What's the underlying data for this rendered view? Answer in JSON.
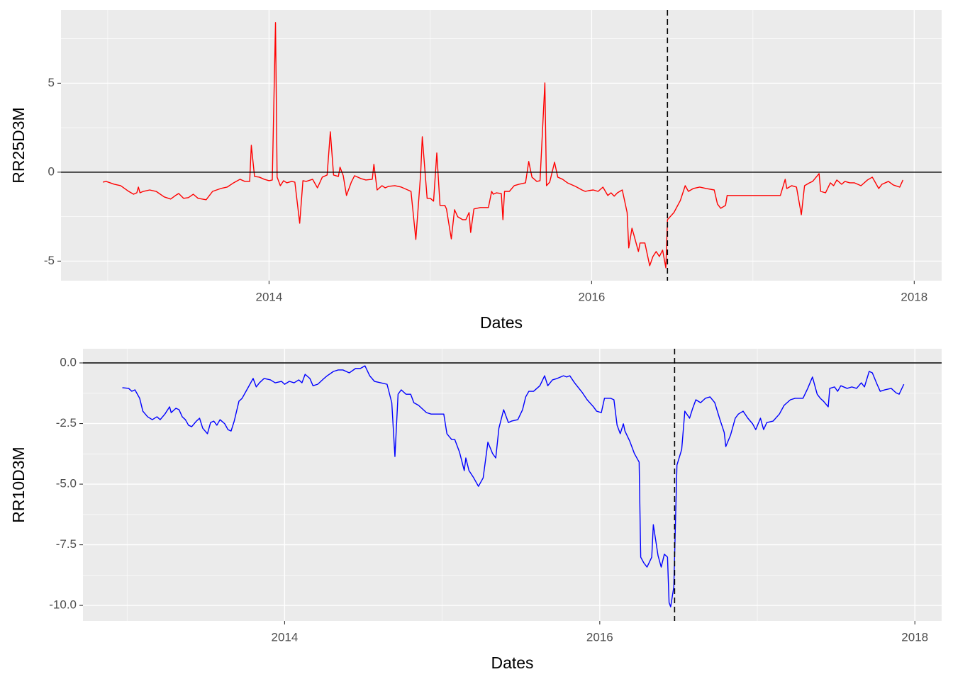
{
  "chart_data": [
    {
      "type": "line",
      "xlabel": "Dates",
      "ylabel": "RR25D3M",
      "xlim": [
        2012.71,
        2018.17
      ],
      "ylim": [
        -6.1,
        9.12
      ],
      "xticks": [
        2014,
        2016,
        2018
      ],
      "yticks": [
        -5,
        0,
        5
      ],
      "xminor": [
        2013,
        2015,
        2017
      ],
      "yminor": [
        -2.5,
        2.5,
        7.5
      ],
      "grid": true,
      "hline": 0,
      "vline": 2016.47,
      "x": [
        2012.97,
        2012.99,
        2013.04,
        2013.08,
        2013.13,
        2013.16,
        2013.18,
        2013.19,
        2013.2,
        2013.22,
        2013.26,
        2013.3,
        2013.35,
        2013.39,
        2013.42,
        2013.44,
        2013.47,
        2013.5,
        2013.53,
        2013.56,
        2013.61,
        2013.65,
        2013.7,
        2013.74,
        2013.78,
        2013.82,
        2013.85,
        2013.88,
        2013.89,
        2013.91,
        2013.94,
        2013.97,
        2014.0,
        2014.02,
        2014.04,
        2014.05,
        2014.07,
        2014.09,
        2014.11,
        2014.14,
        2014.16,
        2014.19,
        2014.21,
        2014.23,
        2014.27,
        2014.3,
        2014.33,
        2014.36,
        2014.38,
        2014.4,
        2014.43,
        2014.44,
        2014.46,
        2014.48,
        2014.51,
        2014.53,
        2014.57,
        2014.6,
        2014.64,
        2014.65,
        2014.67,
        2014.7,
        2014.72,
        2014.74,
        2014.78,
        2014.82,
        2014.86,
        2014.88,
        2014.91,
        2014.94,
        2014.95,
        2014.98,
        2015.0,
        2015.02,
        2015.04,
        2015.06,
        2015.09,
        2015.1,
        2015.13,
        2015.15,
        2015.17,
        2015.2,
        2015.22,
        2015.24,
        2015.25,
        2015.27,
        2015.31,
        2015.34,
        2015.36,
        2015.38,
        2015.39,
        2015.41,
        2015.44,
        2015.45,
        2015.46,
        2015.49,
        2015.52,
        2015.55,
        2015.59,
        2015.61,
        2015.63,
        2015.66,
        2015.68,
        2015.71,
        2015.72,
        2015.74,
        2015.77,
        2015.79,
        2015.82,
        2015.85,
        2015.88,
        2015.9,
        2015.94,
        2015.96,
        2015.98,
        2016.01,
        2016.04,
        2016.05,
        2016.07,
        2016.1,
        2016.12,
        2016.14,
        2016.16,
        2016.19,
        2016.22,
        2016.23,
        2016.25,
        2016.26,
        2016.29,
        2016.3,
        2016.33,
        2016.36,
        2016.38,
        2016.4,
        2016.42,
        2016.44,
        2016.46,
        2016.47,
        2016.51,
        2016.55,
        2016.58,
        2016.6,
        2016.63,
        2016.67,
        2016.71,
        2016.76,
        2016.78,
        2016.8,
        2016.83,
        2016.84,
        2017.17,
        2017.2,
        2017.21,
        2017.24,
        2017.27,
        2017.3,
        2017.32,
        2017.35,
        2017.37,
        2017.41,
        2017.42,
        2017.45,
        2017.48,
        2017.5,
        2017.52,
        2017.55,
        2017.57,
        2017.6,
        2017.63,
        2017.67,
        2017.71,
        2017.74,
        2017.78,
        2017.8,
        2017.84,
        2017.87,
        2017.91,
        2017.93
      ],
      "series": [
        {
          "color": "#ff0000",
          "values": [
            -0.56,
            -0.52,
            -0.68,
            -0.76,
            -1.08,
            -1.24,
            -1.16,
            -0.84,
            -1.16,
            -1.08,
            -1.0,
            -1.08,
            -1.39,
            -1.51,
            -1.31,
            -1.2,
            -1.47,
            -1.43,
            -1.24,
            -1.47,
            -1.55,
            -1.08,
            -0.92,
            -0.84,
            -0.6,
            -0.4,
            -0.52,
            -0.52,
            1.51,
            -0.24,
            -0.28,
            -0.4,
            -0.48,
            -0.44,
            8.41,
            -0.28,
            -0.76,
            -0.48,
            -0.6,
            -0.52,
            -0.56,
            -2.87,
            -0.48,
            -0.52,
            -0.4,
            -0.88,
            -0.28,
            -0.16,
            2.27,
            -0.16,
            -0.24,
            0.28,
            -0.2,
            -1.31,
            -0.56,
            -0.2,
            -0.36,
            -0.44,
            -0.4,
            0.44,
            -1.0,
            -0.76,
            -0.88,
            -0.8,
            -0.76,
            -0.84,
            -1.0,
            -1.08,
            -3.78,
            -0.08,
            1.99,
            -1.47,
            -1.47,
            -1.63,
            1.08,
            -1.87,
            -1.87,
            -2.07,
            -3.75,
            -2.11,
            -2.51,
            -2.67,
            -2.67,
            -2.27,
            -3.39,
            -2.07,
            -1.99,
            -1.99,
            -1.99,
            -1.08,
            -1.24,
            -1.16,
            -1.2,
            -2.67,
            -1.08,
            -1.08,
            -0.76,
            -0.68,
            -0.6,
            0.6,
            -0.28,
            -0.52,
            -0.48,
            5.02,
            -0.76,
            -0.56,
            0.56,
            -0.28,
            -0.4,
            -0.6,
            -0.72,
            -0.8,
            -1.0,
            -1.08,
            -1.04,
            -1.0,
            -1.08,
            -1.0,
            -0.84,
            -1.31,
            -1.16,
            -1.35,
            -1.16,
            -1.0,
            -2.27,
            -4.26,
            -3.15,
            -3.47,
            -4.46,
            -3.98,
            -3.98,
            -5.26,
            -4.74,
            -4.46,
            -4.74,
            -4.38,
            -5.38,
            -2.67,
            -2.27,
            -1.59,
            -0.76,
            -1.08,
            -0.92,
            -0.84,
            -0.92,
            -1.0,
            -1.79,
            -2.03,
            -1.87,
            -1.31,
            -1.31,
            -0.4,
            -0.92,
            -0.76,
            -0.84,
            -2.39,
            -0.76,
            -0.6,
            -0.52,
            -0.08,
            -1.08,
            -1.16,
            -0.6,
            -0.76,
            -0.44,
            -0.68,
            -0.52,
            -0.6,
            -0.6,
            -0.76,
            -0.44,
            -0.28,
            -0.92,
            -0.68,
            -0.52,
            -0.72,
            -0.84,
            -0.44
          ]
        }
      ]
    },
    {
      "type": "line",
      "xlabel": "Dates",
      "ylabel": "RR10D3M",
      "xlim": [
        2012.72,
        2018.17
      ],
      "ylim": [
        -10.64,
        0.585
      ],
      "xticks": [
        2014,
        2016,
        2018
      ],
      "yticks": [
        {
          "value": -10,
          "label": "-10.0"
        },
        -7.5,
        {
          "value": -5,
          "label": "-5.0"
        },
        -2.5,
        {
          "value": 0,
          "label": "0.0"
        }
      ],
      "xminor": [
        2013,
        2015,
        2017
      ],
      "yminor": [
        -8.75,
        -6.25,
        -3.75,
        -1.25
      ],
      "grid": true,
      "hline": 0,
      "vline": 2016.475,
      "x": [
        2012.97,
        2013.01,
        2013.03,
        2013.05,
        2013.08,
        2013.1,
        2013.13,
        2013.16,
        2013.19,
        2013.21,
        2013.24,
        2013.27,
        2013.28,
        2013.31,
        2013.33,
        2013.35,
        2013.37,
        2013.39,
        2013.41,
        2013.44,
        2013.46,
        2013.48,
        2013.51,
        2013.53,
        2013.55,
        2013.57,
        2013.59,
        2013.62,
        2013.64,
        2013.66,
        2013.68,
        2013.71,
        2013.73,
        2013.76,
        2013.8,
        2013.82,
        2013.84,
        2013.87,
        2013.91,
        2013.94,
        2013.98,
        2014.0,
        2014.03,
        2014.06,
        2014.09,
        2014.11,
        2014.13,
        2014.16,
        2014.18,
        2014.21,
        2014.25,
        2014.27,
        2014.31,
        2014.34,
        2014.37,
        2014.41,
        2014.45,
        2014.48,
        2014.51,
        2014.54,
        2014.57,
        2014.61,
        2014.65,
        2014.68,
        2014.7,
        2014.72,
        2014.74,
        2014.77,
        2014.8,
        2014.82,
        2014.85,
        2014.88,
        2014.9,
        2014.93,
        2014.97,
        2015.01,
        2015.03,
        2015.06,
        2015.08,
        2015.11,
        2015.14,
        2015.15,
        2015.17,
        2015.2,
        2015.23,
        2015.26,
        2015.29,
        2015.32,
        2015.34,
        2015.36,
        2015.39,
        2015.42,
        2015.44,
        2015.48,
        2015.51,
        2015.53,
        2015.55,
        2015.58,
        2015.62,
        2015.65,
        2015.67,
        2015.7,
        2015.73,
        2015.77,
        2015.79,
        2015.81,
        2015.84,
        2015.89,
        2015.92,
        2015.96,
        2015.98,
        2016.01,
        2016.03,
        2016.07,
        2016.09,
        2016.11,
        2016.13,
        2016.15,
        2016.16,
        2016.19,
        2016.22,
        2016.25,
        2016.26,
        2016.28,
        2016.3,
        2016.33,
        2016.34,
        2016.37,
        2016.39,
        2016.41,
        2016.43,
        2016.44,
        2016.45,
        2016.47,
        2016.49,
        2016.52,
        2016.54,
        2016.57,
        2016.59,
        2016.61,
        2016.64,
        2016.67,
        2016.7,
        2016.73,
        2016.76,
        2016.79,
        2016.8,
        2016.83,
        2016.86,
        2016.88,
        2016.91,
        2016.94,
        2016.97,
        2016.99,
        2017.02,
        2017.04,
        2017.06,
        2017.1,
        2017.14,
        2017.17,
        2017.21,
        2017.24,
        2017.29,
        2017.32,
        2017.35,
        2017.38,
        2017.4,
        2017.42,
        2017.45,
        2017.46,
        2017.49,
        2017.51,
        2017.53,
        2017.57,
        2017.6,
        2017.63,
        2017.66,
        2017.68,
        2017.71,
        2017.73,
        2017.76,
        2017.78,
        2017.81,
        2017.85,
        2017.88,
        2017.9,
        2017.93
      ],
      "series": [
        {
          "color": "#0000ff",
          "values": [
            -1.02,
            -1.05,
            -1.17,
            -1.11,
            -1.46,
            -1.99,
            -2.22,
            -2.34,
            -2.22,
            -2.34,
            -2.11,
            -1.81,
            -2.05,
            -1.87,
            -1.93,
            -2.22,
            -2.34,
            -2.57,
            -2.63,
            -2.4,
            -2.28,
            -2.69,
            -2.92,
            -2.46,
            -2.4,
            -2.57,
            -2.34,
            -2.51,
            -2.75,
            -2.81,
            -2.4,
            -1.58,
            -1.46,
            -1.11,
            -0.64,
            -0.99,
            -0.82,
            -0.64,
            -0.7,
            -0.82,
            -0.76,
            -0.88,
            -0.76,
            -0.82,
            -0.7,
            -0.82,
            -0.47,
            -0.64,
            -0.94,
            -0.88,
            -0.64,
            -0.53,
            -0.35,
            -0.29,
            -0.29,
            -0.41,
            -0.23,
            -0.23,
            -0.12,
            -0.53,
            -0.76,
            -0.82,
            -0.88,
            -1.64,
            -3.86,
            -1.29,
            -1.11,
            -1.29,
            -1.29,
            -1.64,
            -1.75,
            -1.93,
            -2.05,
            -2.11,
            -2.11,
            -2.11,
            -2.92,
            -3.16,
            -3.16,
            -3.68,
            -4.44,
            -3.92,
            -4.44,
            -4.74,
            -5.09,
            -4.74,
            -3.27,
            -3.74,
            -3.92,
            -2.69,
            -1.93,
            -2.46,
            -2.4,
            -2.34,
            -1.93,
            -1.4,
            -1.17,
            -1.17,
            -0.94,
            -0.53,
            -0.94,
            -0.7,
            -0.64,
            -0.53,
            -0.58,
            -0.53,
            -0.82,
            -1.23,
            -1.52,
            -1.81,
            -1.99,
            -2.05,
            -1.46,
            -1.46,
            -1.52,
            -2.57,
            -2.92,
            -2.51,
            -2.81,
            -3.22,
            -3.74,
            -4.09,
            -8.01,
            -8.25,
            -8.42,
            -8.01,
            -6.67,
            -7.95,
            -8.42,
            -7.89,
            -8.01,
            -9.88,
            -10.06,
            -9.24,
            -4.21,
            -3.57,
            -1.99,
            -2.28,
            -1.87,
            -1.52,
            -1.64,
            -1.46,
            -1.4,
            -1.64,
            -2.28,
            -2.87,
            -3.45,
            -2.98,
            -2.28,
            -2.11,
            -1.99,
            -2.28,
            -2.51,
            -2.75,
            -2.28,
            -2.75,
            -2.46,
            -2.4,
            -2.11,
            -1.75,
            -1.52,
            -1.46,
            -1.46,
            -1.05,
            -0.58,
            -1.29,
            -1.46,
            -1.58,
            -1.81,
            -1.05,
            -0.99,
            -1.17,
            -0.94,
            -1.05,
            -0.99,
            -1.05,
            -0.82,
            -0.99,
            -0.35,
            -0.41,
            -0.88,
            -1.17,
            -1.11,
            -1.05,
            -1.23,
            -1.29,
            -0.88
          ]
        }
      ]
    }
  ]
}
